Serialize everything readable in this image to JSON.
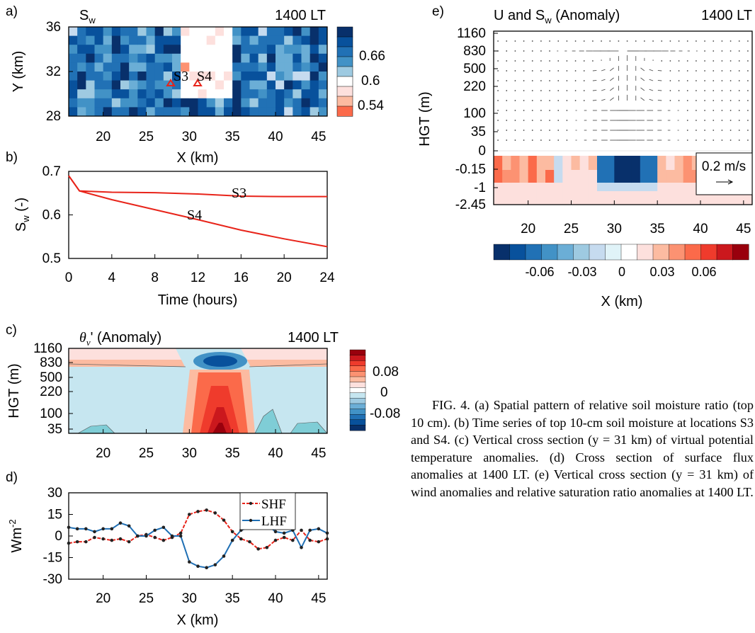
{
  "figure_caption": "FIG. 4. (a) Spatial pattern of relative soil moisture ratio (top 10 cm). (b) Time series of top 10-cm soil moisture at locations S3 and S4. (c) Vertical cross section (y = 31 km) of virtual potential temperature anomalies. (d) Cross section of surface flux anomalies at 1400 LT. (e) Vertical cross section (y = 31 km) of wind anomalies and relative saturation ratio anomalies at 1400 LT.",
  "colors": {
    "series_red": "#e8241a",
    "series_blue": "#1f6fb4",
    "blue_scale": [
      "#08306b",
      "#08519c",
      "#2171b5",
      "#4292c6",
      "#6baed6",
      "#9ecae1",
      "#c6dbef"
    ],
    "red_scale": [
      "#fde0dd",
      "#fcbba1",
      "#fc9272",
      "#fb6a4a",
      "#ef3b2c",
      "#cb181d",
      "#99000d"
    ]
  },
  "chart_data": [
    {
      "id": "a",
      "type": "heatmap",
      "panel_label": "a)",
      "title": "S",
      "title_sub": "w",
      "time_label": "1400 LT",
      "xlabel": "X (km)",
      "ylabel": "Y (km)",
      "xlim": [
        16,
        46
      ],
      "ylim": [
        28,
        36
      ],
      "x_ticks": [
        "20",
        "25",
        "30",
        "35",
        "40",
        "45"
      ],
      "y_ticks": [
        "28",
        "32",
        "36"
      ],
      "colorbar_ticks": [
        "0.66",
        "0.6",
        "0.54"
      ],
      "dry_patch": {
        "x": [
          29,
          34
        ],
        "y": [
          28,
          36
        ]
      },
      "point_labels": [
        {
          "label": "S3",
          "x": 28,
          "y": 31
        },
        {
          "label": "S4",
          "x": 31,
          "y": 31
        }
      ]
    },
    {
      "id": "b",
      "type": "line",
      "panel_label": "b)",
      "xlabel": "Time (hours)",
      "ylabel": "S",
      "ylabel_sub": "w",
      "ylabel_tail": " (-)",
      "xlim": [
        0,
        24
      ],
      "ylim": [
        0.5,
        0.7
      ],
      "x_ticks": [
        "0",
        "4",
        "8",
        "12",
        "16",
        "20",
        "24"
      ],
      "y_ticks": [
        "0.5",
        "0.6",
        "0.7"
      ],
      "series": [
        {
          "name": "S3",
          "x": [
            0,
            1,
            4,
            8,
            12,
            16,
            20,
            24
          ],
          "values": [
            0.69,
            0.655,
            0.652,
            0.651,
            0.648,
            0.643,
            0.642,
            0.642
          ]
        },
        {
          "name": "S4",
          "x": [
            0,
            1,
            4,
            8,
            12,
            16,
            20,
            24
          ],
          "values": [
            0.69,
            0.655,
            0.635,
            0.612,
            0.589,
            0.565,
            0.545,
            0.527
          ]
        }
      ]
    },
    {
      "id": "c",
      "type": "heatmap",
      "panel_label": "c)",
      "title": "θ",
      "title_sub": "v",
      "title_tail": "' (Anomaly)",
      "time_label": "1400 LT",
      "xlabel": "",
      "ylabel": "HGT (m)",
      "xlim": [
        16,
        46
      ],
      "x_ticks": [
        "20",
        "25",
        "30",
        "35",
        "40",
        "45"
      ],
      "y_ticks": [
        "1160",
        "830",
        "500",
        "220",
        "100",
        "35"
      ],
      "colorbar_ticks": [
        "0.08",
        "0",
        "-0.08"
      ]
    },
    {
      "id": "d",
      "type": "line",
      "panel_label": "d)",
      "xlabel": "X (km)",
      "ylabel": "Wm",
      "ylabel_sup": "-2",
      "xlim": [
        16,
        46
      ],
      "ylim": [
        -30,
        30
      ],
      "x_ticks": [
        "20",
        "25",
        "30",
        "35",
        "40",
        "45"
      ],
      "y_ticks": [
        "30",
        "15",
        "0",
        "-15",
        "-30"
      ],
      "legend": "top-right",
      "x": [
        16,
        17,
        18,
        19,
        20,
        21,
        22,
        23,
        24,
        25,
        26,
        27,
        28,
        29,
        30,
        31,
        32,
        33,
        34,
        35,
        36,
        37,
        38,
        39,
        40,
        41,
        42,
        43,
        44,
        45,
        46
      ],
      "series": [
        {
          "name": "SHF",
          "values": [
            -5,
            -4,
            -4,
            -1,
            -2,
            -3,
            -2,
            -4,
            0,
            1,
            -1,
            -3,
            -1,
            2,
            15,
            17,
            18,
            16,
            11,
            3,
            -2,
            -4,
            -9,
            -8,
            -3,
            -1,
            -3,
            4,
            -3,
            -4,
            -2
          ]
        },
        {
          "name": "LHF",
          "values": [
            6,
            5,
            5,
            3,
            5,
            5,
            9,
            7,
            0,
            0,
            4,
            6,
            0,
            0,
            -18,
            -21,
            -22,
            -20,
            -14,
            -3,
            4,
            6,
            10,
            8,
            3,
            2,
            4,
            -8,
            4,
            5,
            2
          ]
        }
      ]
    },
    {
      "id": "e",
      "type": "heatmap",
      "panel_label": "e)",
      "title": "U and S",
      "title_sub": "w",
      "title_tail": " (Anomaly)",
      "time_label": "1400 LT",
      "xlabel": "X (km)",
      "ylabel": "HGT (m)",
      "xlim": [
        16,
        46
      ],
      "x_ticks": [
        "20",
        "25",
        "30",
        "35",
        "40",
        "45"
      ],
      "y_ticks": [
        "1160",
        "830",
        "500",
        "220",
        "100",
        "35",
        "0",
        "-0.15",
        "-1",
        "-2.45"
      ],
      "colorbar_ticks": [
        "-0.06",
        "-0.03",
        "0",
        "0.03",
        "0.06"
      ],
      "reference_vector": "0.2 m/s"
    }
  ]
}
